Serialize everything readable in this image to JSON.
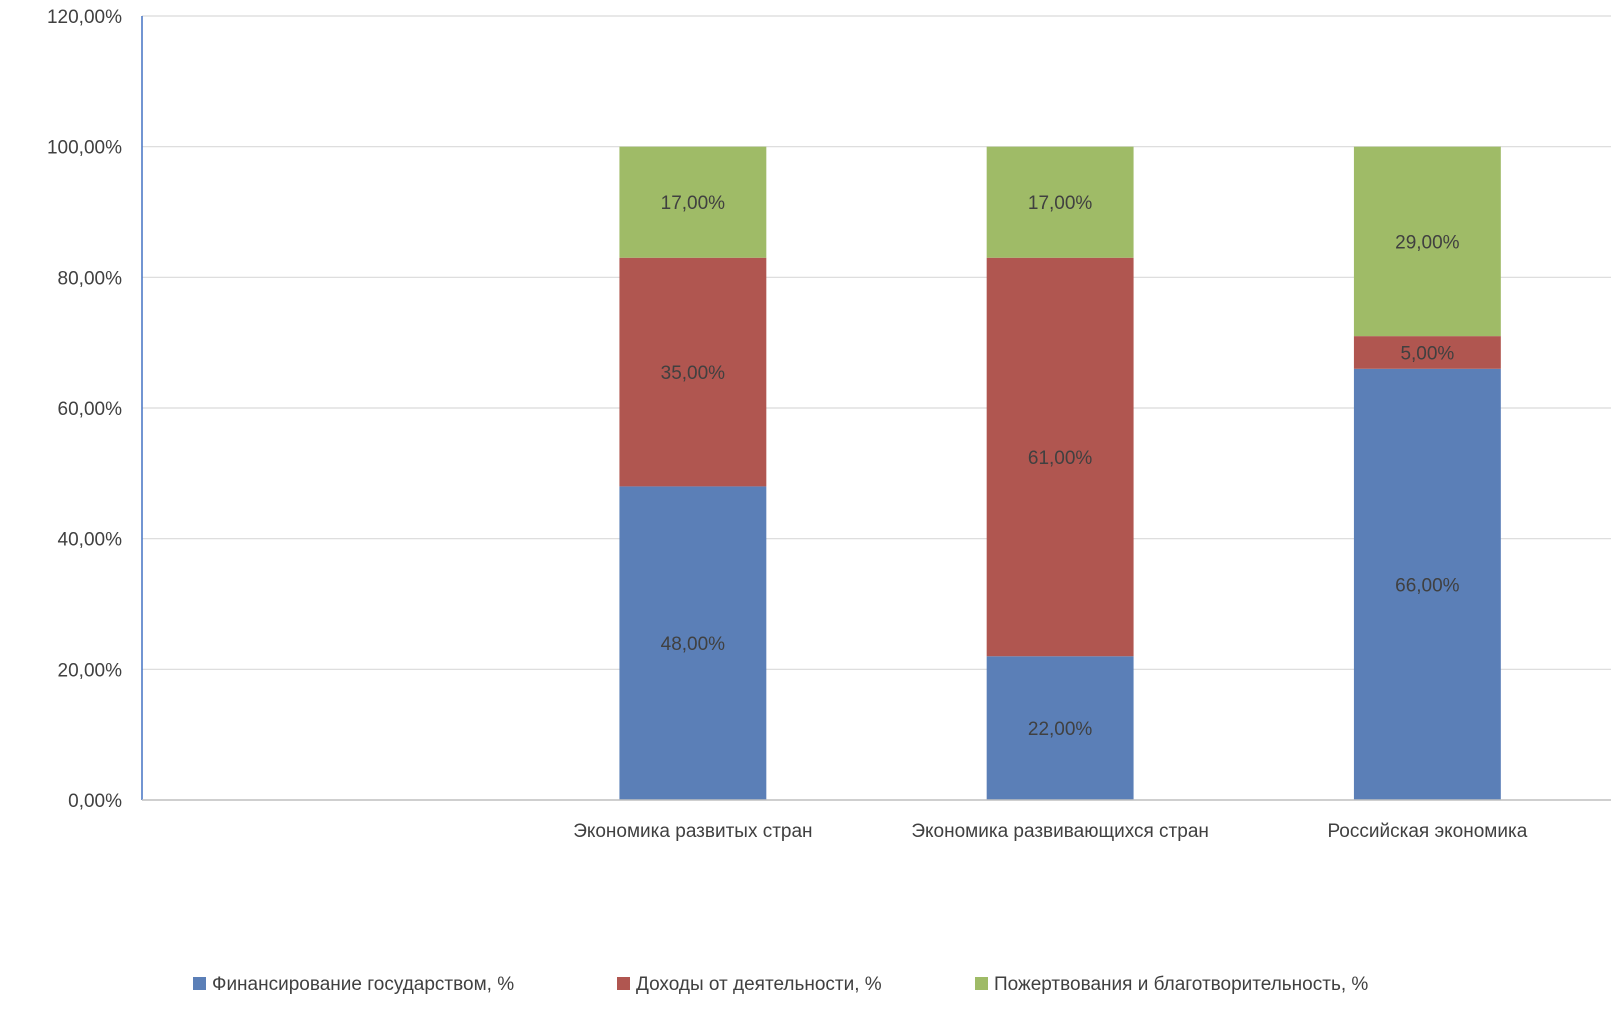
{
  "chart_data": {
    "type": "bar",
    "stacked": true,
    "categories": [
      "",
      "Экономика развитых стран",
      "Экономика развивающихся стран",
      "Российская экономика"
    ],
    "series": [
      {
        "name": "Финансирование государством, %",
        "color": "#5B7FB7",
        "values": [
          null,
          48,
          22,
          66
        ],
        "labels": [
          "",
          "48,00%",
          "22,00%",
          "66,00%"
        ]
      },
      {
        "name": "Доходы от деятельности, %",
        "color": "#B05650",
        "values": [
          null,
          35,
          61,
          5
        ],
        "labels": [
          "",
          "35,00%",
          "61,00%",
          "5,00%"
        ]
      },
      {
        "name": "Пожертвования и благотворительность, %",
        "color": "#9FBB67",
        "values": [
          null,
          17,
          17,
          29
        ],
        "labels": [
          "",
          "17,00%",
          "17,00%",
          "29,00%"
        ]
      }
    ],
    "y_ticks": [
      "0,00%",
      "20,00%",
      "40,00%",
      "60,00%",
      "80,00%",
      "100,00%",
      "120,00%"
    ],
    "ylim": [
      0,
      120
    ],
    "grid": true,
    "legend_position": "bottom",
    "colors": {
      "grid": "#D9D9D9",
      "axis": "#4472C4",
      "text": "#404040"
    }
  }
}
